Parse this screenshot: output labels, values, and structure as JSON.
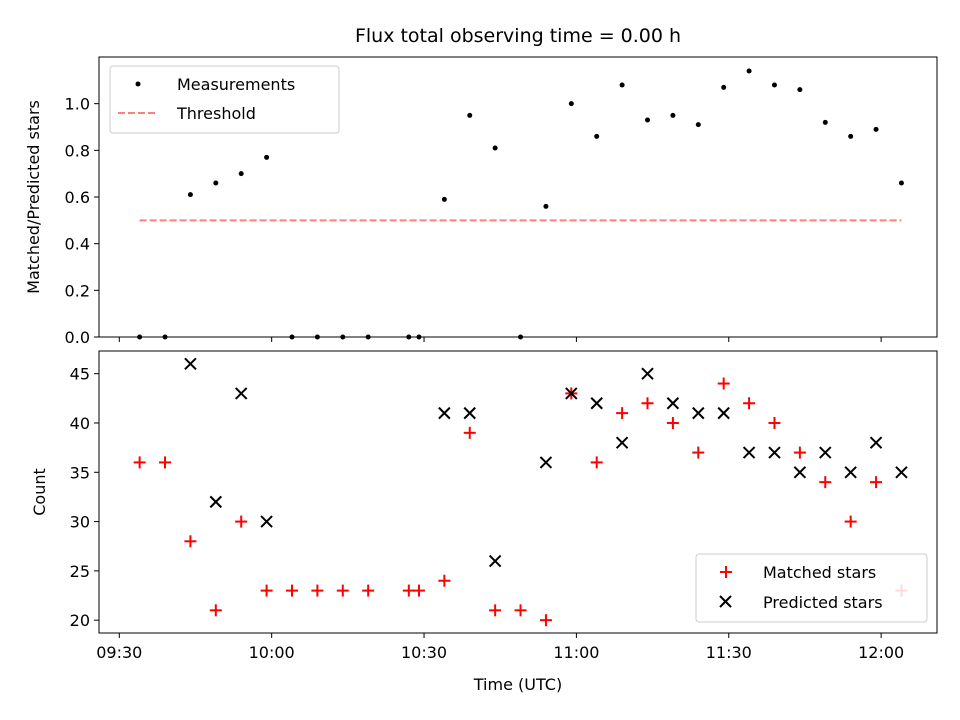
{
  "chart_data": [
    {
      "type": "scatter",
      "title": "Flux total observing time = 0.00 h",
      "xlabel": "",
      "ylabel": "Matched/Predicted stars",
      "xlim": [
        "09:26",
        "12:11"
      ],
      "ylim": [
        0,
        1.2
      ],
      "yticks": [
        "0.0",
        "0.2",
        "0.4",
        "0.6",
        "0.8",
        "1.0"
      ],
      "legend_position": "top-left",
      "series": [
        {
          "name": "Measurements",
          "marker": "dot",
          "color": "#000000",
          "x": [
            "09:34",
            "09:39",
            "09:44",
            "09:49",
            "09:54",
            "09:59",
            "10:04",
            "10:09",
            "10:14",
            "10:19",
            "10:27",
            "10:29",
            "10:34",
            "10:39",
            "10:44",
            "10:49",
            "10:54",
            "10:59",
            "11:04",
            "11:09",
            "11:14",
            "11:19",
            "11:24",
            "11:29",
            "11:34",
            "11:39",
            "11:44",
            "11:49",
            "11:54",
            "11:59",
            "12:04"
          ],
          "y": [
            0.0,
            0.0,
            0.61,
            0.66,
            0.7,
            0.77,
            0.0,
            0.0,
            0.0,
            0.0,
            0.0,
            0.0,
            0.59,
            0.95,
            0.81,
            0.0,
            0.56,
            1.0,
            0.86,
            1.08,
            0.93,
            0.95,
            0.91,
            1.07,
            1.14,
            1.08,
            1.06,
            0.92,
            0.86,
            0.89,
            0.66
          ]
        },
        {
          "name": "Threshold",
          "style": "dashed",
          "color": "#ff7f7f",
          "x": [
            "09:34",
            "12:04"
          ],
          "y": [
            0.5,
            0.5
          ]
        }
      ]
    },
    {
      "type": "scatter",
      "title": "",
      "xlabel": "Time (UTC)",
      "ylabel": "Count",
      "xlim": [
        "09:26",
        "12:11"
      ],
      "ylim": [
        18.7,
        47.3
      ],
      "yticks": [
        "20",
        "25",
        "30",
        "35",
        "40",
        "45"
      ],
      "xticks": [
        "09:30",
        "10:00",
        "10:30",
        "11:00",
        "11:30",
        "12:00"
      ],
      "legend_position": "bottom-right",
      "series": [
        {
          "name": "Matched stars",
          "marker": "plus",
          "color": "#ff0000",
          "x": [
            "09:34",
            "09:39",
            "09:44",
            "09:49",
            "09:54",
            "09:59",
            "10:04",
            "10:09",
            "10:14",
            "10:19",
            "10:27",
            "10:29",
            "10:34",
            "10:39",
            "10:44",
            "10:49",
            "10:54",
            "10:59",
            "11:04",
            "11:09",
            "11:14",
            "11:19",
            "11:24",
            "11:29",
            "11:34",
            "11:39",
            "11:44",
            "11:49",
            "11:54",
            "11:59",
            "12:04"
          ],
          "y": [
            36,
            36,
            28,
            21,
            30,
            23,
            23,
            23,
            23,
            23,
            23,
            23,
            24,
            39,
            21,
            21,
            20,
            43,
            36,
            41,
            42,
            40,
            37,
            44,
            42,
            40,
            37,
            34,
            30,
            34,
            23
          ]
        },
        {
          "name": "Predicted stars",
          "marker": "x",
          "color": "#000000",
          "x": [
            "09:44",
            "09:49",
            "09:54",
            "09:59",
            "10:34",
            "10:39",
            "10:44",
            "10:54",
            "10:59",
            "11:04",
            "11:09",
            "11:14",
            "11:19",
            "11:24",
            "11:29",
            "11:34",
            "11:39",
            "11:44",
            "11:49",
            "11:54",
            "11:59",
            "12:04"
          ],
          "y": [
            46,
            32,
            43,
            30,
            41,
            41,
            26,
            36,
            43,
            42,
            38,
            45,
            42,
            41,
            41,
            37,
            37,
            35,
            37,
            35,
            38,
            35
          ]
        }
      ]
    }
  ]
}
